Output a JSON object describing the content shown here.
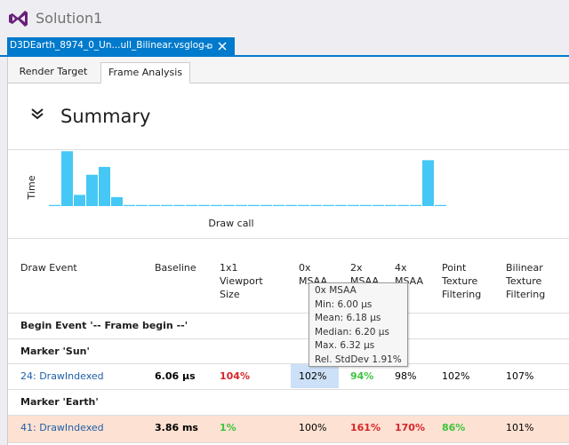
{
  "app": {
    "title": "Solution1"
  },
  "document_tab": {
    "title": "D3DEarth_8974_0_Un...ull_Bilinear.vsglog"
  },
  "subtabs": {
    "items": [
      "Render Target",
      "Frame Analysis"
    ],
    "selected": 1
  },
  "summary": {
    "title": "Summary"
  },
  "chart_data": {
    "type": "bar",
    "ylabel": "Time",
    "xlabel": "Draw call",
    "color": "#45c8f5",
    "ylim": [
      0,
      50
    ],
    "values": [
      1,
      49,
      10,
      28,
      35,
      8,
      1,
      1,
      1,
      1,
      1,
      1,
      1,
      1,
      1,
      1,
      1,
      1,
      1,
      1,
      1,
      1,
      1,
      1,
      1,
      1,
      1,
      1,
      1,
      1,
      41,
      1
    ]
  },
  "table": {
    "headers": [
      "Draw Event",
      "Baseline",
      "1x1\nViewport\nSize",
      "0x\nMSAA",
      "2x\nMSAA",
      "4x\nMSAA",
      "Point\nTexture\nFiltering",
      "Bilinear\nTexture\nFiltering"
    ],
    "rows": [
      {
        "group": "Begin Event '-- Frame begin --'"
      },
      {
        "group": "Marker 'Sun'"
      },
      {
        "cells": [
          "24: DrawIndexed",
          "6.06 µs",
          "104%",
          "102%",
          "94%",
          "98%",
          "102%",
          "107%"
        ],
        "colors": [
          "#1e5fa8",
          "#000000",
          "#d6262b",
          "#000000",
          "#3cc43c",
          "#000000",
          "#000000",
          "#000000"
        ],
        "selected_cell": 3
      },
      {
        "group": "Marker 'Earth'"
      },
      {
        "cells": [
          "41: DrawIndexed",
          "3.86 ms",
          "1%",
          "100%",
          "161%",
          "170%",
          "86%",
          "101%"
        ],
        "colors": [
          "#1e5fa8",
          "#000000",
          "#3cc43c",
          "#000000",
          "#d6262b",
          "#d6262b",
          "#3cc43c",
          "#000000"
        ],
        "background": "#fde1d2"
      }
    ]
  },
  "tooltip": {
    "lines": [
      "0x MSAA",
      "Min: 6.00 µs",
      "Mean: 6.18 µs",
      "Median: 6.20 µs",
      "Max. 6.32 µs",
      "Rel. StdDev 1.91%"
    ]
  }
}
